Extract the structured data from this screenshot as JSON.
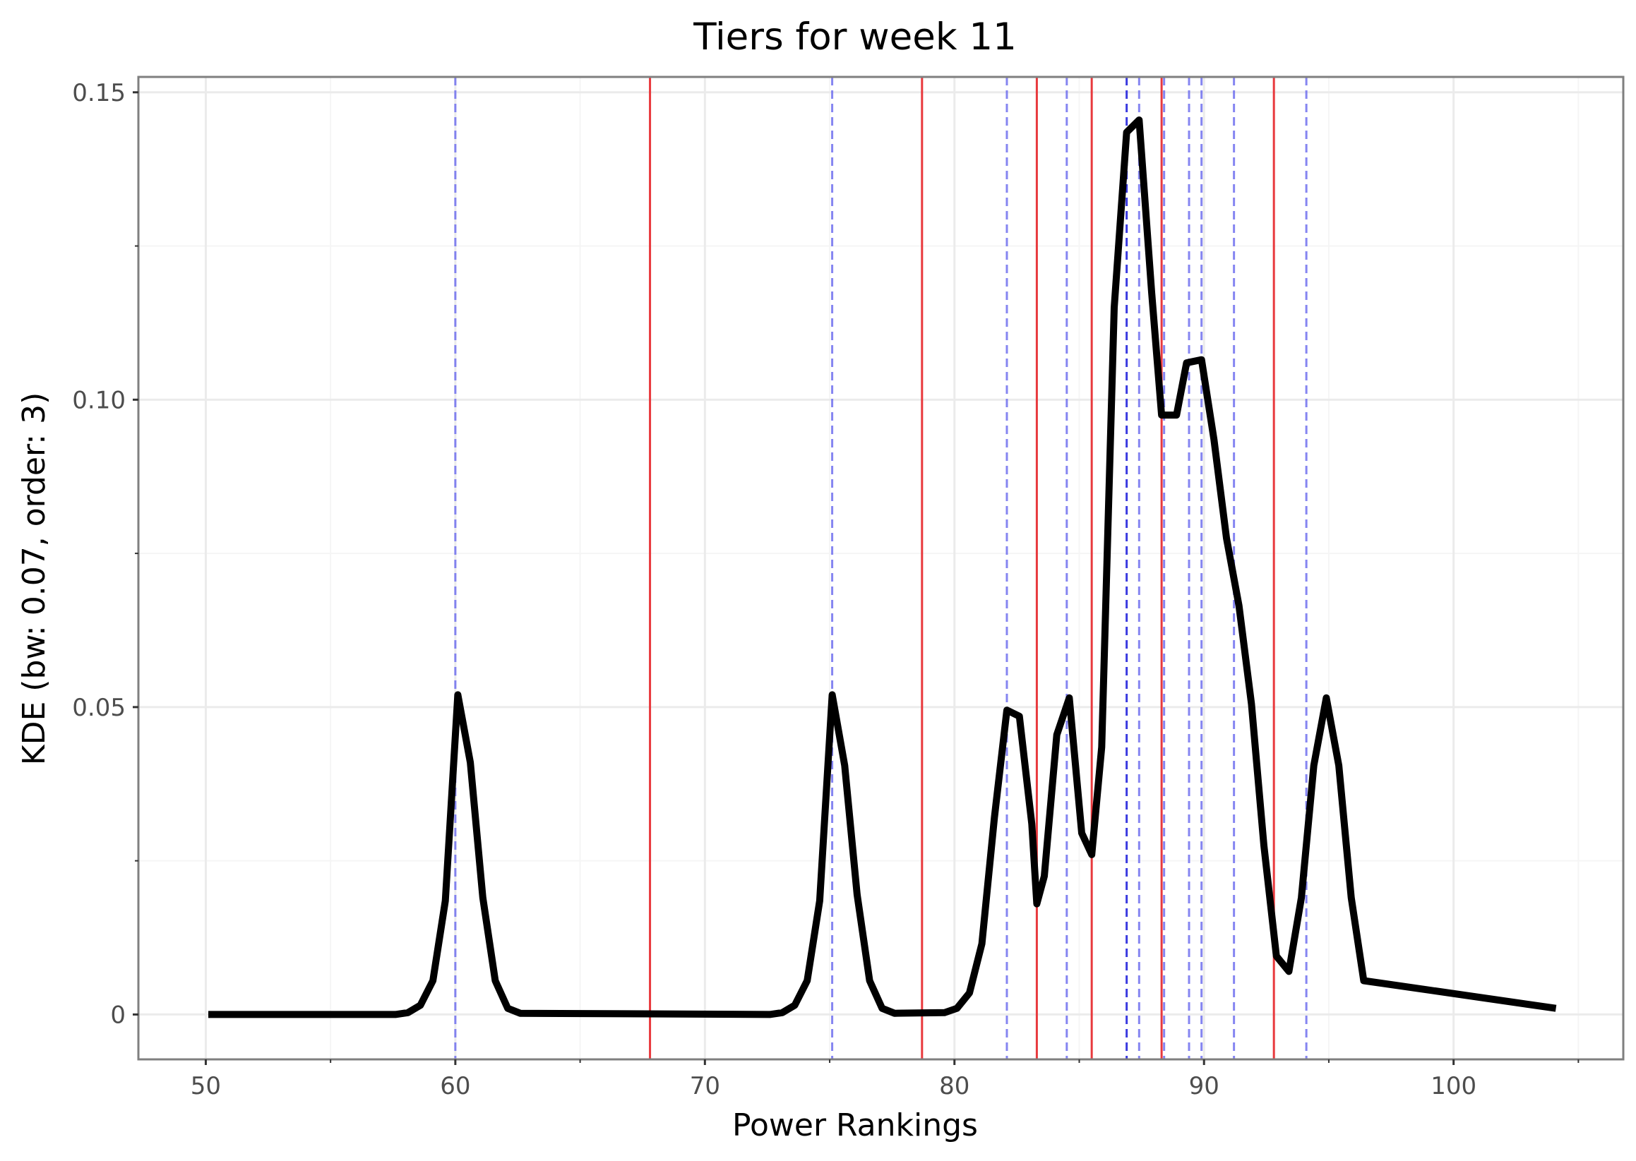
{
  "chart_data": {
    "type": "line",
    "title": "Tiers for week 11",
    "xlabel": "Power Rankings",
    "ylabel": "KDE (bw: 0.07, order: 3)",
    "xlim": [
      47.3,
      106.8
    ],
    "ylim": [
      -0.0073,
      0.1525
    ],
    "x_ticks": [
      50,
      60,
      70,
      80,
      90,
      100
    ],
    "x_tick_labels": [
      "50",
      "60",
      "70",
      "80",
      "90",
      "100"
    ],
    "y_ticks": [
      0,
      0.05,
      0.1,
      0.15
    ],
    "y_tick_labels": [
      "0",
      "0.05",
      "0.10",
      "0.15"
    ],
    "x_minor_ticks": [
      55,
      65,
      75,
      85,
      95,
      105
    ],
    "y_minor_ticks": [
      0.025,
      0.075,
      0.125
    ],
    "grid": true,
    "legend": "none",
    "colors": {
      "kde_line": "#000000",
      "tier_boundary": "#e8393d",
      "team_marker": "#7070ee",
      "team_marker_dark": "#3a3ae0",
      "panel_border": "#7f7f7f",
      "grid_major": "#ebebeb",
      "grid_minor": "#f5f5f5"
    },
    "series": [
      {
        "style": "solid-thick",
        "x": [
          50.1,
          57.6,
          58.1,
          58.6,
          59.1,
          59.6,
          60.1,
          60.6,
          61.1,
          61.6,
          62.1,
          62.6,
          72.6,
          73.1,
          73.6,
          74.1,
          74.6,
          75.1,
          75.6,
          76.1,
          76.6,
          77.1,
          77.6,
          79.6,
          80.1,
          80.6,
          81.1,
          81.6,
          82.1,
          82.6,
          83.1,
          83.3,
          83.6,
          84.1,
          84.6,
          85.1,
          85.5,
          85.9,
          86.4,
          86.9,
          87.4,
          87.9,
          88.3,
          88.9,
          89.3,
          89.9,
          90.4,
          90.9,
          91.4,
          91.9,
          92.4,
          92.9,
          93.4,
          93.9,
          94.4,
          94.9,
          95.4,
          95.9,
          96.4,
          104.1
        ],
        "y": [
          0,
          0,
          0.0003,
          0.0015,
          0.0055,
          0.0185,
          0.052,
          0.041,
          0.019,
          0.0055,
          0.001,
          0.0002,
          0,
          0.0003,
          0.0015,
          0.0055,
          0.0185,
          0.052,
          0.0405,
          0.0195,
          0.0055,
          0.001,
          0.0002,
          0.0003,
          0.001,
          0.0035,
          0.0115,
          0.032,
          0.0495,
          0.0485,
          0.031,
          0.018,
          0.0225,
          0.0455,
          0.0515,
          0.0295,
          0.026,
          0.0435,
          0.115,
          0.1435,
          0.1455,
          0.1175,
          0.0975,
          0.0975,
          0.106,
          0.1065,
          0.0935,
          0.0775,
          0.0665,
          0.0505,
          0.0275,
          0.0095,
          0.007,
          0.019,
          0.0405,
          0.0515,
          0.0405,
          0.019,
          0.0055,
          0.001
        ]
      }
    ],
    "tier_boundaries": [
      67.8,
      78.7,
      83.3,
      85.5,
      88.3,
      92.8
    ],
    "team_markers": [
      60.0,
      75.1,
      82.1,
      84.5,
      86.9,
      87.4,
      88.4,
      89.4,
      89.9,
      91.2,
      94.1
    ]
  }
}
